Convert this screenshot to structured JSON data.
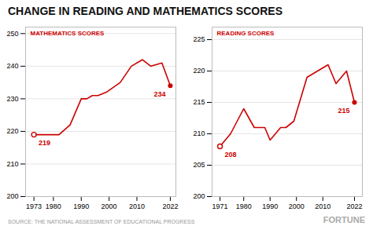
{
  "title": "CHANGE IN READING AND MATHEMATICS SCORES",
  "source": "SOURCE: THE NATIONAL ASSESSMENT OF EDUCATIONAL PROGRESS",
  "credit": "FORTUNE",
  "chart_data": [
    {
      "type": "line",
      "x": [
        1973,
        1978,
        1982,
        1986,
        1990,
        1992,
        1994,
        1996,
        1999,
        2004,
        2008,
        2012,
        2015,
        2019,
        2022
      ],
      "series": [
        {
          "name": "MATHEMATICS SCORES",
          "color": "#cc0000",
          "values": [
            219,
            219,
            219,
            222,
            230,
            230,
            231,
            231,
            232,
            235,
            240,
            242,
            240,
            241,
            234
          ]
        }
      ],
      "annotations": [
        "219",
        "234"
      ],
      "marker": "endpoints",
      "xlim": [
        1970,
        2024
      ],
      "xticks": [
        1973,
        1980,
        1990,
        2000,
        2010,
        2022
      ],
      "ylim": [
        200,
        252
      ],
      "yticks": [
        200,
        210,
        220,
        230,
        240,
        250
      ],
      "grid": true
    },
    {
      "type": "line",
      "x": [
        1971,
        1975,
        1980,
        1984,
        1988,
        1990,
        1992,
        1994,
        1996,
        1999,
        2004,
        2008,
        2012,
        2015,
        2019,
        2022
      ],
      "series": [
        {
          "name": "READING SCORES",
          "color": "#cc0000",
          "values": [
            208,
            210,
            214,
            211,
            211,
            209,
            210,
            211,
            211,
            212,
            219,
            220,
            221,
            218,
            220,
            215
          ]
        }
      ],
      "annotations": [
        "208",
        "215"
      ],
      "marker": "endpoints",
      "xlim": [
        1968,
        2025
      ],
      "xticks": [
        1971,
        1980,
        1990,
        2000,
        2010,
        2022
      ],
      "ylim": [
        200,
        227
      ],
      "yticks": [
        200,
        205,
        210,
        215,
        220,
        225
      ],
      "grid": true
    }
  ]
}
